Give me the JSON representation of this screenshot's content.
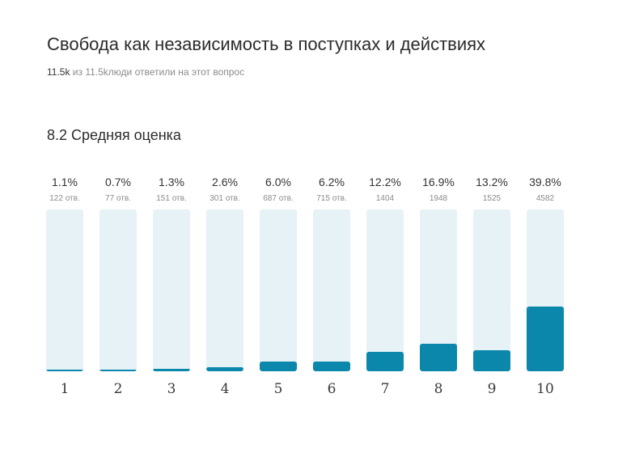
{
  "header": {
    "title": "Свобода как независимость в поступках и действиях",
    "respondents": "11.5k",
    "respondents_rest": " из 11.5kлюди ответили на этот вопрос"
  },
  "average_label": "8.2 Средняя оценка",
  "colors": {
    "track": "#e6f2f6",
    "fill": "#0a87ab"
  },
  "chart_data": {
    "type": "bar",
    "categories": [
      "1",
      "2",
      "3",
      "4",
      "5",
      "6",
      "7",
      "8",
      "9",
      "10"
    ],
    "values": [
      1.1,
      0.7,
      1.3,
      2.6,
      6.0,
      6.2,
      12.2,
      16.9,
      13.2,
      39.8
    ],
    "value_labels": [
      "1.1%",
      "0.7%",
      "1.3%",
      "2.6%",
      "6.0%",
      "6.2%",
      "12.2%",
      "16.9%",
      "13.2%",
      "39.8%"
    ],
    "counts": [
      "122 отв.",
      "77 отв.",
      "151 отв.",
      "301 отв.",
      "687 отв.",
      "715 отв.",
      "1404",
      "1948",
      "1525",
      "4582"
    ],
    "ylim": [
      0,
      100
    ]
  }
}
